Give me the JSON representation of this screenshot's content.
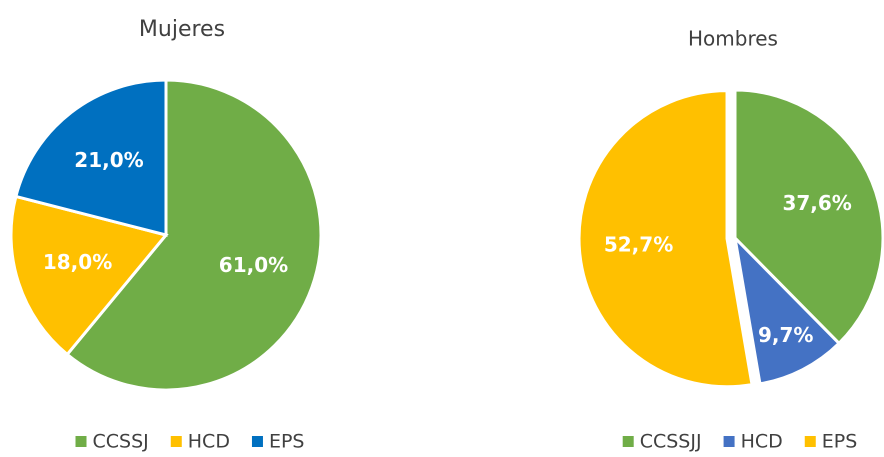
{
  "chart_data": [
    {
      "type": "pie",
      "title": "Mujeres",
      "categories": [
        "CCSSJ",
        "HCD",
        "EPS"
      ],
      "values": [
        61.0,
        18.0,
        21.0
      ],
      "value_labels": [
        "61,0%",
        "18,0%",
        "21,0%"
      ],
      "colors": [
        "#70ad47",
        "#ffc000",
        "#0070c0"
      ]
    },
    {
      "type": "pie",
      "title": "Hombres",
      "categories": [
        "CCSSJJ",
        "HCD",
        "EPS"
      ],
      "values": [
        37.6,
        9.7,
        52.7
      ],
      "value_labels": [
        "37,6%",
        "9,7%",
        "52,7%"
      ],
      "colors": [
        "#70ad47",
        "#4472c4",
        "#ffc000"
      ]
    }
  ]
}
